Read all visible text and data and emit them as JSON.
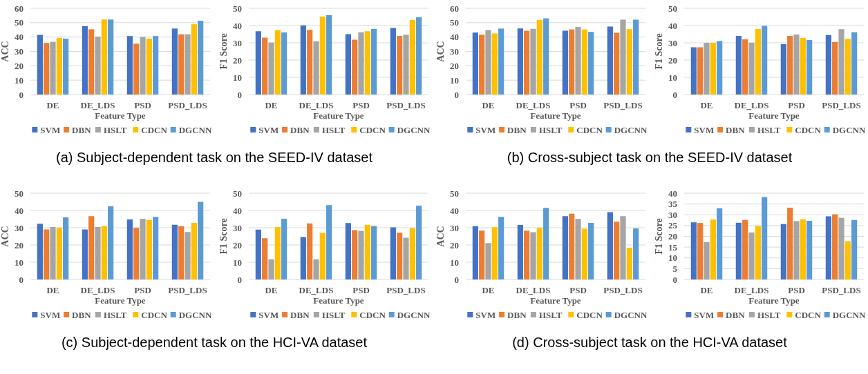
{
  "chart_data": [
    {
      "type": "bar",
      "categories": [
        "DE",
        "DE_LDS",
        "PSD",
        "PSD_LDS"
      ],
      "xlabel": "Feature Type",
      "ylabel": "ACC",
      "ylim": [
        0,
        60
      ],
      "yticks": [
        0,
        10,
        20,
        30,
        40,
        50,
        60
      ],
      "grid": "y",
      "legend": "bottom",
      "annotations": [
        "(a) Subject-dependent task on the SEED-IV dataset"
      ],
      "series": [
        {
          "name": "SVM",
          "color": "#4472c4",
          "values": [
            41.5,
            47.6,
            40.7,
            45.9
          ]
        },
        {
          "name": "DBN",
          "color": "#ed7d31",
          "values": [
            35.9,
            45.4,
            35.4,
            41.9
          ]
        },
        {
          "name": "HSLT",
          "color": "#a5a5a5",
          "values": [
            36.7,
            40.2,
            40,
            41.9
          ]
        },
        {
          "name": "CDCN",
          "color": "#ffc000",
          "values": [
            39.4,
            52.2,
            38.9,
            48.9
          ]
        },
        {
          "name": "DGCNN",
          "color": "#5b9bd5",
          "values": [
            38.9,
            52.2,
            40.7,
            51.3
          ]
        }
      ]
    },
    {
      "type": "bar",
      "categories": [
        "DE",
        "DE_LDS",
        "PSD",
        "PSD_LDS"
      ],
      "xlabel": "Feature Type",
      "ylabel": "F1 Score",
      "ylim": [
        0,
        50
      ],
      "yticks": [
        0,
        10,
        20,
        30,
        40,
        50
      ],
      "grid": "y",
      "legend": "bottom",
      "series": [
        {
          "name": "SVM",
          "color": "#4472c4",
          "values": [
            36.7,
            40.1,
            35,
            38.6
          ]
        },
        {
          "name": "DBN",
          "color": "#ed7d31",
          "values": [
            33,
            37.5,
            31.8,
            34
          ]
        },
        {
          "name": "HSLT",
          "color": "#a5a5a5",
          "values": [
            30.1,
            30.9,
            36.1,
            34.7
          ]
        },
        {
          "name": "CDCN",
          "color": "#ffc000",
          "values": [
            37.3,
            45.2,
            36.7,
            43.2
          ]
        },
        {
          "name": "DGCNN",
          "color": "#5b9bd5",
          "values": [
            36,
            46,
            38,
            44.8
          ]
        }
      ]
    },
    {
      "type": "bar",
      "categories": [
        "DE",
        "DE_LDS",
        "PSD",
        "PSD_LDS"
      ],
      "xlabel": "Feature Type",
      "ylabel": "ACC",
      "ylim": [
        0,
        60
      ],
      "yticks": [
        0,
        10,
        20,
        30,
        40,
        50,
        60
      ],
      "grid": "y",
      "legend": "bottom",
      "annotations": [
        "(b) Cross-subject task on the SEED-IV dataset"
      ],
      "series": [
        {
          "name": "SVM",
          "color": "#4472c4",
          "values": [
            43.1,
            46,
            44.4,
            47.3
          ]
        },
        {
          "name": "DBN",
          "color": "#ed7d31",
          "values": [
            41.6,
            44.4,
            45.3,
            42.9
          ]
        },
        {
          "name": "HSLT",
          "color": "#a5a5a5",
          "values": [
            44.8,
            45.7,
            47,
            52.1
          ]
        },
        {
          "name": "CDCN",
          "color": "#ffc000",
          "values": [
            42.5,
            51.9,
            45.3,
            45.5
          ]
        },
        {
          "name": "DGCNN",
          "color": "#5b9bd5",
          "values": [
            45.9,
            53,
            43.6,
            52.1
          ]
        }
      ]
    },
    {
      "type": "bar",
      "categories": [
        "DE",
        "DE_LDS",
        "PSD",
        "PSD_LDS"
      ],
      "xlabel": "Feature Type",
      "ylabel": "F1 Score",
      "ylim": [
        0,
        50
      ],
      "yticks": [
        0,
        10,
        20,
        30,
        40,
        50
      ],
      "grid": "y",
      "legend": "bottom",
      "series": [
        {
          "name": "SVM",
          "color": "#4472c4",
          "values": [
            27.4,
            34,
            29.2,
            34.5
          ]
        },
        {
          "name": "DBN",
          "color": "#ed7d31",
          "values": [
            27.4,
            32,
            34,
            30.5
          ]
        },
        {
          "name": "HSLT",
          "color": "#a5a5a5",
          "values": [
            30,
            30,
            34.8,
            37.9
          ]
        },
        {
          "name": "CDCN",
          "color": "#ffc000",
          "values": [
            30,
            38,
            32.8,
            32.2
          ]
        },
        {
          "name": "DGCNN",
          "color": "#5b9bd5",
          "values": [
            31,
            39.8,
            31.6,
            36.1
          ]
        }
      ]
    },
    {
      "type": "bar",
      "categories": [
        "DE",
        "DE_LDS",
        "PSD",
        "PSD_LDS"
      ],
      "xlabel": "Feature Type",
      "ylabel": "ACC",
      "ylim": [
        0,
        50
      ],
      "yticks": [
        0,
        10,
        20,
        30,
        40,
        50
      ],
      "grid": "y",
      "legend": "bottom",
      "annotations": [
        "(c) Subject-dependent task on the HCI-VA dataset"
      ],
      "series": [
        {
          "name": "SVM",
          "color": "#4472c4",
          "values": [
            32.3,
            29,
            34.8,
            31.7
          ]
        },
        {
          "name": "DBN",
          "color": "#ed7d31",
          "values": [
            29,
            36.7,
            30,
            30.9
          ]
        },
        {
          "name": "HSLT",
          "color": "#a5a5a5",
          "values": [
            30.4,
            30.4,
            35.2,
            27.5
          ]
        },
        {
          "name": "CDCN",
          "color": "#ffc000",
          "values": [
            30,
            31,
            34.4,
            32.8
          ]
        },
        {
          "name": "DGCNN",
          "color": "#5b9bd5",
          "values": [
            36,
            42.4,
            36.3,
            45
          ]
        }
      ]
    },
    {
      "type": "bar",
      "categories": [
        "DE",
        "DE_LDS",
        "PSD",
        "PSD_LDS"
      ],
      "xlabel": "Feature Type",
      "ylabel": "F1 Score",
      "ylim": [
        0,
        50
      ],
      "yticks": [
        0,
        10,
        20,
        30,
        40,
        50
      ],
      "grid": "y",
      "legend": "bottom",
      "series": [
        {
          "name": "SVM",
          "color": "#4472c4",
          "values": [
            28.9,
            24.6,
            32.7,
            30.2
          ]
        },
        {
          "name": "DBN",
          "color": "#ed7d31",
          "values": [
            23.9,
            32.5,
            28.6,
            27.1
          ]
        },
        {
          "name": "HSLT",
          "color": "#a5a5a5",
          "values": [
            11.7,
            11.7,
            28.2,
            24.2
          ]
        },
        {
          "name": "CDCN",
          "color": "#ffc000",
          "values": [
            30.4,
            27,
            31.7,
            29.8
          ]
        },
        {
          "name": "DGCNN",
          "color": "#5b9bd5",
          "values": [
            35.2,
            43.1,
            31,
            42.8
          ]
        }
      ]
    },
    {
      "type": "bar",
      "categories": [
        "DE",
        "DE_LDS",
        "PSD",
        "PSD_LDS"
      ],
      "xlabel": "Feature Type",
      "ylabel": "ACC",
      "ylim": [
        0,
        50
      ],
      "yticks": [
        0,
        10,
        20,
        30,
        40,
        50
      ],
      "grid": "y",
      "legend": "bottom",
      "annotations": [
        "(d) Cross-subject task on the HCI-VA dataset"
      ],
      "series": [
        {
          "name": "SVM",
          "color": "#4472c4",
          "values": [
            30.9,
            31.6,
            36.7,
            39
          ]
        },
        {
          "name": "DBN",
          "color": "#ed7d31",
          "values": [
            28.3,
            28.3,
            38.1,
            33.5
          ]
        },
        {
          "name": "HSLT",
          "color": "#a5a5a5",
          "values": [
            21.1,
            27.4,
            35.1,
            36.7
          ]
        },
        {
          "name": "CDCN",
          "color": "#ffc000",
          "values": [
            30.3,
            30,
            29.4,
            18.4
          ]
        },
        {
          "name": "DGCNN",
          "color": "#5b9bd5",
          "values": [
            36.3,
            41.5,
            32.8,
            29.6
          ]
        }
      ]
    },
    {
      "type": "bar",
      "categories": [
        "DE",
        "DE_LDS",
        "PSD",
        "PSD_LDS"
      ],
      "xlabel": "Feature Type",
      "ylabel": "F1 Score",
      "ylim": [
        0,
        40
      ],
      "yticks": [
        0,
        5,
        10,
        15,
        20,
        25,
        30,
        35,
        40
      ],
      "grid": "y",
      "legend": "bottom",
      "series": [
        {
          "name": "SVM",
          "color": "#4472c4",
          "values": [
            26.5,
            26.3,
            25.7,
            29.3
          ]
        },
        {
          "name": "DBN",
          "color": "#ed7d31",
          "values": [
            26.2,
            27.6,
            33.3,
            30.2
          ]
        },
        {
          "name": "HSLT",
          "color": "#a5a5a5",
          "values": [
            17.3,
            21.8,
            27.1,
            28.6
          ]
        },
        {
          "name": "CDCN",
          "color": "#ffc000",
          "values": [
            27.8,
            24.8,
            27.9,
            17.7
          ]
        },
        {
          "name": "DGCNN",
          "color": "#5b9bd5",
          "values": [
            33,
            38.2,
            27.2,
            27.6
          ]
        }
      ]
    }
  ]
}
